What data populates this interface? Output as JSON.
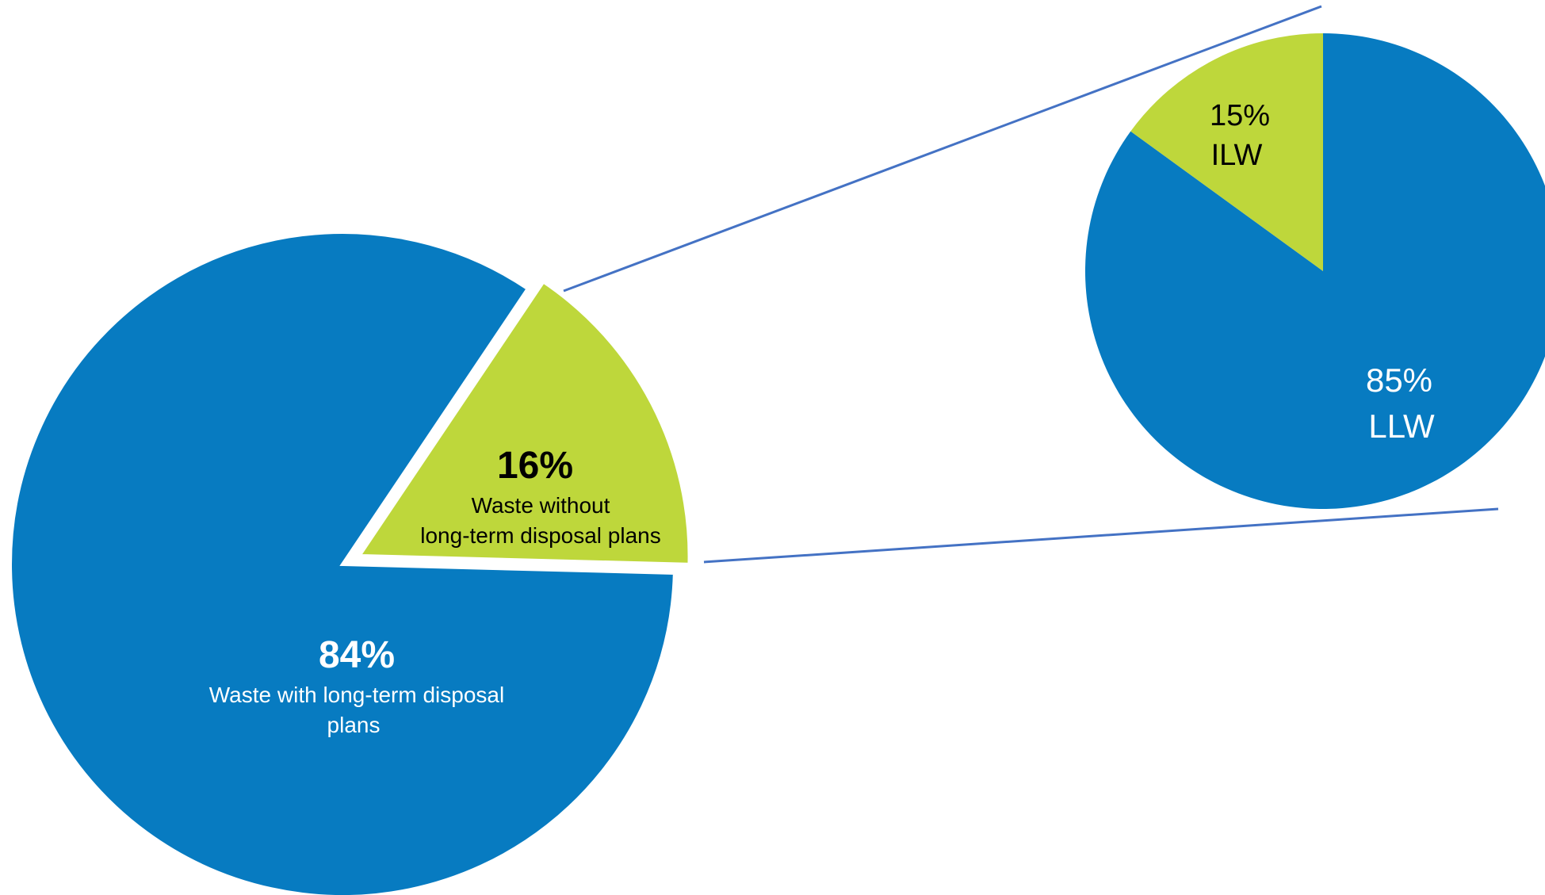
{
  "chart_data": [
    {
      "type": "pie",
      "title": "",
      "slices": [
        {
          "percent_label": "84%",
          "description": "Waste with long-term disposal plans",
          "value": 84,
          "color": "#077BC1"
        },
        {
          "percent_label": "16%",
          "description": "Waste without long-term disposal plans",
          "value": 16,
          "color": "#BED73B"
        }
      ]
    },
    {
      "type": "pie",
      "title": "",
      "slices": [
        {
          "percent_label": "85%",
          "description": "LLW",
          "value": 85,
          "color": "#077BC1"
        },
        {
          "percent_label": "15%",
          "description": "ILW",
          "value": 15,
          "color": "#BED73B"
        }
      ]
    }
  ],
  "colors": {
    "connector": "#4472C4",
    "separator": "#ffffff"
  }
}
